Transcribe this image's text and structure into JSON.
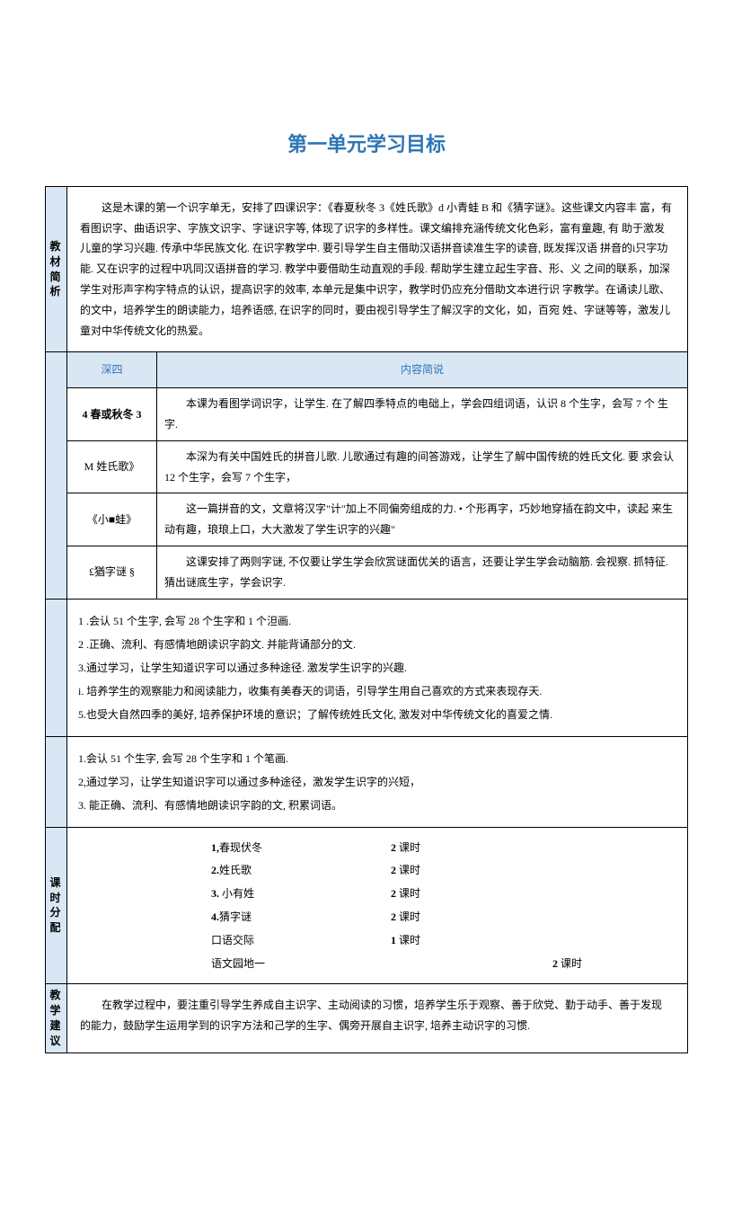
{
  "title": "第一单元学习目标",
  "colors": {
    "title_color": "#2e75b6",
    "label_bg": "#d9e7f5",
    "border": "#000000",
    "text": "#000000"
  },
  "sections": {
    "material_analysis": {
      "label": "教材简析",
      "content": "这是木课的第一个识字单无，安排了四课识字：《春夏秋冬 3《姓氏歌》d 小青蛙 B 和《猜字谜》。这些课文内容丰 富，有看图识字、曲语识字、字族文识字、字谜识字等, 体现了识字的多样性。课文编排充涵传统文化色彩，富有童趣, 有 助于激发儿童的学习兴趣. 传承中华民族文化. 在识字教学中. 要引导学生自主借助汉语拼音读准生字的读音, 既发挥汉语 拼音的i只字功能. 又在识字的过程中巩同汉语拼音的学习. 教学中要借助生动直观的手段. 帮助学生建立起生字音、形、义 之间的联系，加深学生对形声字构字特点的认识，提高识字的效率, 本单元是集中识字，教学时仍应充分借助文本进行识 字教学。在诵读儿歌、的文中，培养学生的朗读能力，培养语感, 在识字的同时，要由视引导学生了解汉字的文化，如，百宛 姓、字谜等等，激发儿童对中华传统文化的热爱。"
    },
    "content_table": {
      "header_left": "深四",
      "header_right": "内容简说",
      "rows": [
        {
          "name": "4 春或秋冬 3",
          "desc": "本课为看图学词识字，让学生. 在了解四季特点的电础上，学会四组词语，认识 8 个生字，会写 7 个 生字."
        },
        {
          "name": "M 姓氏歌》",
          "desc": "本深为有关中国姓氏的拼音儿歌. 儿歌通过有趣的间答游戏，让学生了解中国传统的姓氏文化. 要 求会认12 个生字，会写 7 个生字，"
        },
        {
          "name": "《小■蛙》",
          "desc": "这一篇拼音的文，文章将汉字\"计\"加上不同偏旁组成的力. • 个形再字，巧妙地穿插在韵文中，读起 来生动有趣，琅琅上口，大大激发了学生识字的兴趣\""
        },
        {
          "name": "£猶字谜 §",
          "desc": "这课安排了两则字谜, 不仅要让学生学会欣赏谜面优关的语言，还要让学生学会动脑筋. 会视察. 抓特征. 猜出谜底生字，学会识字."
        }
      ]
    },
    "goals1": {
      "items": [
        "1       .会认 51 个生字, 会写 28 个生字和 1 个泹画.",
        "2       .正确、流利、有感情地朗读识字韵文. 并能背诵部分的文.",
        "3.通过学习，让学生知道识字可以通过多种途径. 激发学生识字的兴趣.",
        "i. 培养学生的观察能力和阅读能力，收集有美春天的词语，引导学生用自己喜欢的方式来表现存天.",
        "5.也受大自然四季的美好, 培养保护环境的意识；了解传统姓氏文化, 激发对中华传统文化的喜爱之情."
      ]
    },
    "goals2": {
      "items": [
        "1.会认 51 个生字, 会写 28 个生字和 1 个笔画.",
        "2,通过学习，让学生知道识字可以通过多种途径，激发学生识字的兴短，",
        "3. 能正确、流利、有感情地朗读识字韵的文, 积累词语。"
      ]
    },
    "schedule": {
      "label": "课时分配",
      "items": [
        {
          "num": "1,",
          "name": "春现伏冬",
          "time": "2 课时"
        },
        {
          "num": "2.",
          "name": "姓氏歌",
          "time": "2 课时"
        },
        {
          "num": "3.",
          "name": " 小有姓",
          "time": "2 课时"
        },
        {
          "num": "4.",
          "name": "猜字谜",
          "time": "2 课时"
        },
        {
          "num": "",
          "name": "口语交际",
          "time": "1 课时"
        },
        {
          "num": "",
          "name": "语文园地一",
          "time": "",
          "time2": "2 课时"
        }
      ]
    },
    "suggestion": {
      "label": "教学建议",
      "content": "在教学过程中，要注重引导学生养成自主识字、主动阅读的习惯，培养学生乐于观察、善于欣党、勤于动手、善于发现 的能力，鼓励学生运用学到的识字方法和己学的生字、偶旁开展自主识字, 培养主动识字的习惯."
    }
  }
}
